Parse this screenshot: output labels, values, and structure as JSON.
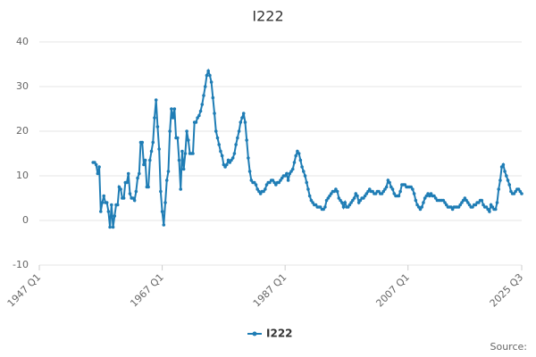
{
  "chart_data": {
    "type": "line",
    "title": "I222",
    "source": "Source:",
    "categories": [
      "1947 Q1",
      null,
      null,
      null,
      null,
      null,
      null,
      null,
      null,
      null,
      null,
      null,
      null,
      null,
      null,
      null,
      null,
      null,
      null,
      null,
      null,
      null,
      null,
      null,
      null,
      null,
      null,
      null,
      null,
      null,
      null,
      null,
      null,
      null,
      null,
      null,
      null,
      null,
      null,
      null,
      null,
      null,
      null,
      null,
      null,
      null,
      null,
      null,
      null,
      null,
      null,
      null,
      null,
      null,
      null,
      null,
      null,
      null,
      null,
      null,
      null,
      null,
      null,
      null,
      null,
      null,
      null,
      null,
      null,
      null,
      null,
      null,
      null,
      null,
      null,
      null,
      null,
      null,
      null,
      null,
      "1967 Q1",
      null,
      null,
      null,
      null,
      null,
      null,
      null,
      null,
      null,
      null,
      null,
      null,
      null,
      null,
      null,
      null,
      null,
      null,
      null,
      null,
      null,
      null,
      null,
      null,
      null,
      null,
      null,
      null,
      null,
      null,
      null,
      null,
      null,
      null,
      null,
      null,
      null,
      null,
      null,
      null,
      null,
      null,
      null,
      null,
      null,
      null,
      null,
      null,
      null,
      null,
      null,
      null,
      null,
      null,
      null,
      null,
      null,
      null,
      null,
      null,
      null,
      null,
      null,
      null,
      null,
      null,
      null,
      null,
      null,
      null,
      null,
      null,
      null,
      null,
      null,
      null,
      null,
      null,
      null,
      "1987 Q1",
      null,
      null,
      null,
      null,
      null,
      null,
      null,
      null,
      null,
      null,
      null,
      null,
      null,
      null,
      null,
      null,
      null,
      null,
      null,
      null,
      null,
      null,
      null,
      null,
      null,
      null,
      null,
      null,
      null,
      null,
      null,
      null,
      null,
      null,
      null,
      null,
      null,
      null,
      null,
      null,
      null,
      null,
      null,
      null,
      null,
      null,
      null,
      null,
      null,
      null,
      null,
      null,
      null,
      null,
      null,
      null,
      null,
      null,
      null,
      null,
      null,
      null,
      null,
      null,
      null,
      null,
      null,
      null,
      null,
      null,
      null,
      null,
      null,
      null,
      null,
      null,
      null,
      null,
      null,
      "2007 Q1",
      null,
      null,
      null,
      null,
      null,
      null,
      null,
      null,
      null,
      null,
      null,
      null,
      null,
      null,
      null,
      null,
      null,
      null,
      null,
      null,
      null,
      null,
      null,
      null,
      null,
      null,
      null,
      null,
      null,
      null,
      null,
      null,
      null,
      null,
      null,
      null,
      null,
      null,
      null,
      null,
      null,
      null,
      null,
      null,
      null,
      null,
      null,
      null,
      null,
      null,
      null,
      null,
      null,
      null,
      null,
      null,
      null,
      null,
      null,
      null,
      null,
      null,
      null,
      null,
      null,
      null,
      null,
      null,
      null,
      null,
      null,
      null,
      null,
      "2025 Q3"
    ],
    "series": [
      {
        "name": "I222",
        "color": "#1f7db5",
        "values": [
          null,
          null,
          null,
          null,
          null,
          null,
          null,
          null,
          null,
          null,
          null,
          null,
          null,
          null,
          null,
          null,
          null,
          null,
          null,
          null,
          null,
          null,
          null,
          null,
          null,
          null,
          null,
          null,
          null,
          null,
          null,
          null,
          null,
          null,
          null,
          13,
          13,
          12.5,
          10.5,
          12,
          2,
          4,
          5.5,
          4,
          4,
          2,
          -1.5,
          3.5,
          -1.5,
          1,
          3.5,
          3.5,
          7.5,
          7,
          5,
          5,
          8.5,
          8.5,
          10.5,
          6,
          5,
          5,
          4.5,
          6.5,
          9.5,
          10.5,
          17.5,
          17.5,
          12.5,
          13.5,
          7.5,
          7.5,
          13.5,
          15.5,
          17.5,
          23,
          27,
          21,
          16,
          6.5,
          2,
          -1,
          4,
          9,
          11,
          20,
          25,
          23,
          25,
          18.5,
          18.5,
          13.5,
          7,
          15.5,
          11.5,
          15,
          20,
          18,
          15,
          15,
          15,
          22,
          22,
          23,
          23.5,
          24.5,
          26,
          28,
          30,
          32.5,
          33.5,
          32.5,
          31,
          27.5,
          24,
          20,
          18.5,
          17,
          15.5,
          14.5,
          12.5,
          12,
          12.5,
          13.5,
          13,
          13.5,
          14,
          15,
          17,
          18.5,
          20,
          22,
          23,
          24,
          22,
          18,
          14,
          11,
          9,
          8.5,
          8.5,
          8,
          7,
          6.5,
          6,
          6.5,
          6.5,
          7,
          8,
          8.5,
          8.5,
          9,
          9,
          8.5,
          8,
          8.5,
          8.5,
          9,
          9.5,
          10,
          10,
          10.5,
          9,
          10.5,
          11,
          11.5,
          13,
          14.5,
          15.5,
          15,
          13.5,
          12,
          11,
          10,
          8.5,
          7,
          5.5,
          4.5,
          4,
          3.5,
          3.5,
          3,
          3,
          3,
          2.5,
          2.5,
          3,
          4.5,
          5,
          5.5,
          6,
          6.5,
          6.5,
          7,
          6.5,
          5,
          4.5,
          4,
          3,
          4,
          3,
          3,
          3.5,
          4,
          4.5,
          5,
          6,
          5.5,
          4,
          4.5,
          5,
          5,
          5.5,
          6,
          6.5,
          7,
          6.5,
          6.5,
          6,
          6,
          6.5,
          6.5,
          6,
          6,
          6.5,
          7,
          7.5,
          9,
          8.5,
          7.5,
          7,
          6,
          5.5,
          5.5,
          5.5,
          6.5,
          8,
          8,
          8,
          7.5,
          7.5,
          7.5,
          7.5,
          7,
          6,
          4.5,
          3.5,
          3,
          2.5,
          3,
          4,
          5,
          5.5,
          6,
          5.5,
          6,
          5.5,
          5.5,
          5,
          4.5,
          4.5,
          4.5,
          4.5,
          4.5,
          4,
          3.5,
          3,
          3,
          3,
          2.5,
          3,
          3,
          3,
          3,
          3.5,
          4,
          4.5,
          5,
          4.5,
          4,
          3.5,
          3,
          3,
          3.5,
          3.5,
          4,
          4,
          4.5,
          4.5,
          3.5,
          3,
          3,
          2.5,
          2,
          3.5,
          3,
          2.5,
          2.5,
          4,
          7,
          9,
          12,
          12.5,
          11,
          10,
          9,
          8,
          6.5,
          6,
          6,
          6.5,
          7,
          7,
          6.5,
          6
        ]
      }
    ],
    "ylim": [
      -10,
      40
    ],
    "yticks": [
      -10,
      0,
      10,
      20,
      30,
      40
    ],
    "grid": true,
    "legend": "bottom"
  }
}
